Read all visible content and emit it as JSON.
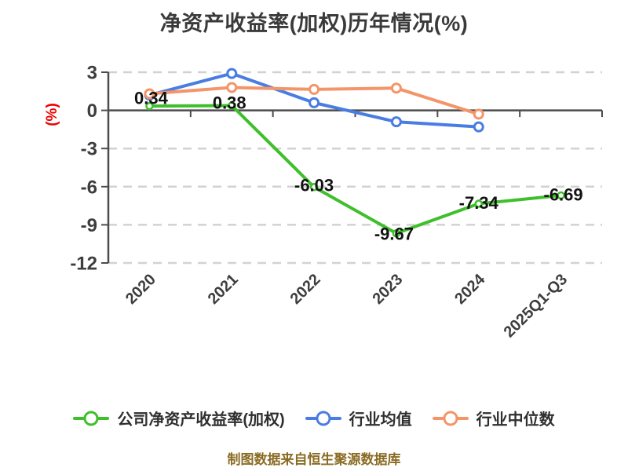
{
  "title": "净资产收益率(加权)历年情况(%)",
  "footer": "制图数据来自恒生聚源数据库",
  "colors": {
    "company": "#3fbf2c",
    "industry_avg": "#4a7de2",
    "industry_median": "#f39569",
    "grid": "#d2d2d2",
    "axis": "#4c4c4c",
    "tick_text": "#3d3d3d",
    "title_text": "#3a3a3a",
    "data_label": "#121212",
    "y_unit_label": "#ee0000",
    "footer_text": "#8a6b23"
  },
  "chart_data": {
    "type": "line",
    "title": "净资产收益率(加权)历年情况(%)",
    "categories": [
      "2020",
      "2021",
      "2022",
      "2023",
      "2024",
      "2025Q1-Q3"
    ],
    "series": [
      {
        "name": "公司净资产收益率(加权)",
        "color_key": "company",
        "values": [
          0.34,
          0.38,
          -6.03,
          -9.67,
          -7.34,
          -6.69
        ],
        "labels": [
          "0.34",
          "0.38",
          "-6.03",
          "-9.67",
          "-7.34",
          "-6.69"
        ],
        "labeled": true
      },
      {
        "name": "行业均值",
        "color_key": "industry_avg",
        "values": [
          1.2,
          2.9,
          0.6,
          -0.9,
          -1.3,
          null
        ],
        "labeled": false
      },
      {
        "name": "行业中位数",
        "color_key": "industry_median",
        "values": [
          1.3,
          1.8,
          1.65,
          1.75,
          -0.3,
          null
        ],
        "labeled": false
      }
    ],
    "xlabel": "",
    "ylabel": "(%)",
    "yticks": [
      3,
      0,
      -3,
      -6,
      -9,
      -12
    ],
    "ylim": [
      -12,
      3
    ],
    "grid": "horizontal dashed",
    "x_tick_rotation": 45,
    "legend_position": "bottom"
  }
}
